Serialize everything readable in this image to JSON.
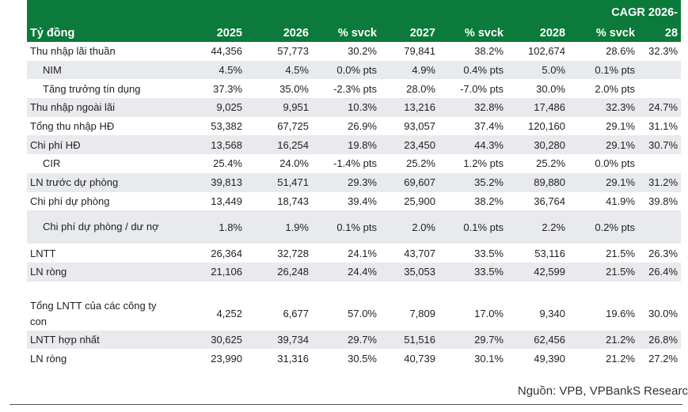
{
  "header": {
    "cagr_top": "CAGR 2026-",
    "cagr_bottom": "28",
    "columns": [
      "Tỷ đồng",
      "2025",
      "2026",
      "% svck",
      "2027",
      "% svck",
      "2028",
      "% svck"
    ]
  },
  "rows": [
    {
      "label": "Thu nhập lãi thuần",
      "cells": [
        "44,356",
        "57,773",
        "30.2%",
        "79,841",
        "38.2%",
        "102,674",
        "28.6%",
        "32.3%"
      ]
    },
    {
      "label": "NIM",
      "indent": true,
      "cells": [
        "4.5%",
        "4.5%",
        "0.0% pts",
        "4.9%",
        "0.4% pts",
        "5.0%",
        "0.1% pts",
        ""
      ]
    },
    {
      "label": "Tăng trưởng tín dụng",
      "indent": true,
      "cells": [
        "37.3%",
        "35.0%",
        "-2.3% pts",
        "28.0%",
        "-7.0% pts",
        "30.0%",
        "2.0% pts",
        ""
      ]
    },
    {
      "label": "Thu nhập ngoài lãi",
      "cells": [
        "9,025",
        "9,951",
        "10.3%",
        "13,216",
        "32.8%",
        "17,486",
        "32.3%",
        "24.7%"
      ]
    },
    {
      "label": "Tổng thu nhập HĐ",
      "cells": [
        "53,382",
        "67,725",
        "26.9%",
        "93,057",
        "37.4%",
        "120,160",
        "29.1%",
        "31.1%"
      ]
    },
    {
      "label": "Chi phí HĐ",
      "cells": [
        "13,568",
        "16,254",
        "19.8%",
        "23,450",
        "44.3%",
        "30,280",
        "29.1%",
        "30.7%"
      ]
    },
    {
      "label": "CIR",
      "indent": true,
      "cells": [
        "25.4%",
        "24.0%",
        "-1.4% pts",
        "25.2%",
        "1.2% pts",
        "25.2%",
        "0.0% pts",
        ""
      ]
    },
    {
      "label": "LN trước dự phòng",
      "cells": [
        "39,813",
        "51,471",
        "29.3%",
        "69,607",
        "35.2%",
        "89,880",
        "29.1%",
        "31.2%"
      ]
    },
    {
      "label": "Chi phí dự phòng",
      "cells": [
        "13,449",
        "18,743",
        "39.4%",
        "25,900",
        "38.2%",
        "36,764",
        "41.9%",
        "39.8%"
      ]
    },
    {
      "label": "Chi phí dự phòng / dư nợ",
      "indent": true,
      "tall": true,
      "cells": [
        "1.8%",
        "1.9%",
        "0.1% pts",
        "2.0%",
        "0.1% pts",
        "2.2%",
        "0.2% pts",
        ""
      ]
    },
    {
      "label": "LNTT",
      "cells": [
        "26,364",
        "32,728",
        "24.1%",
        "43,707",
        "33.5%",
        "53,116",
        "21.5%",
        "26.3%"
      ]
    },
    {
      "label": "LN ròng",
      "cells": [
        "21,106",
        "26,248",
        "24.4%",
        "35,053",
        "33.5%",
        "42,599",
        "21.5%",
        "26.4%"
      ]
    },
    {
      "gap": true
    },
    {
      "label": "Tổng LNTT của các công ty con",
      "tall": true,
      "cells": [
        "4,252",
        "6,677",
        "57.0%",
        "7,809",
        "17.0%",
        "9,340",
        "19.6%",
        "30.0%"
      ]
    },
    {
      "label": "LNTT hợp nhất",
      "cells": [
        "30,625",
        "39,734",
        "29.7%",
        "51,516",
        "29.7%",
        "62,456",
        "21.2%",
        "26.8%"
      ]
    },
    {
      "label": "LN ròng",
      "cells": [
        "23,990",
        "31,316",
        "30.5%",
        "40,739",
        "30.1%",
        "49,390",
        "21.2%",
        "27.2%"
      ]
    }
  ],
  "source": "Nguồn: VPB, VPBankS Researc"
}
